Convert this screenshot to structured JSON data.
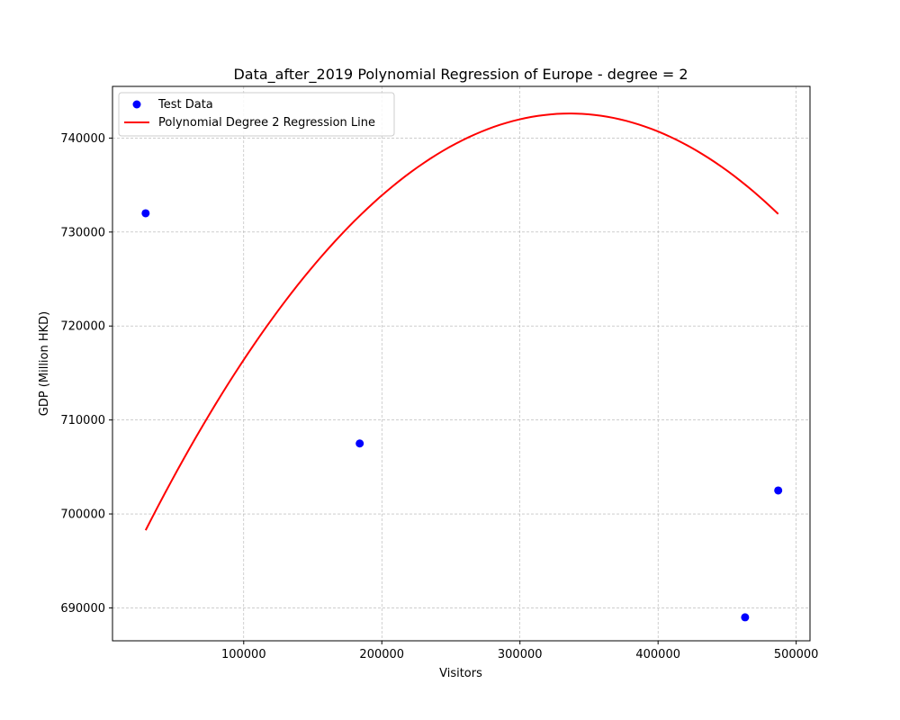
{
  "chart_data": {
    "type": "scatter",
    "title": "Data_after_2019 Polynomial Regression of Europe - degree = 2",
    "xlabel": "Visitors",
    "ylabel": "GDP (Million HKD)",
    "xlim": [
      5000,
      510000
    ],
    "ylim": [
      686500,
      745500
    ],
    "xticks": [
      100000,
      200000,
      300000,
      400000,
      500000
    ],
    "yticks": [
      690000,
      700000,
      710000,
      720000,
      730000,
      740000
    ],
    "grid": true,
    "legend_position": "top-left",
    "series": [
      {
        "name": "Test Data",
        "kind": "scatter",
        "color": "#0000ff",
        "points": [
          {
            "x": 29000,
            "y": 732000
          },
          {
            "x": 184000,
            "y": 707500
          },
          {
            "x": 463000,
            "y": 689000
          },
          {
            "x": 487000,
            "y": 702500
          }
        ]
      },
      {
        "name": "Polynomial Degree 2 Regression Line",
        "kind": "line",
        "color": "#ff0000",
        "quadratic": {
          "a": -4.7e-07,
          "b": 0.316,
          "c": 689500
        },
        "x_range": [
          29000,
          487000
        ]
      }
    ]
  }
}
